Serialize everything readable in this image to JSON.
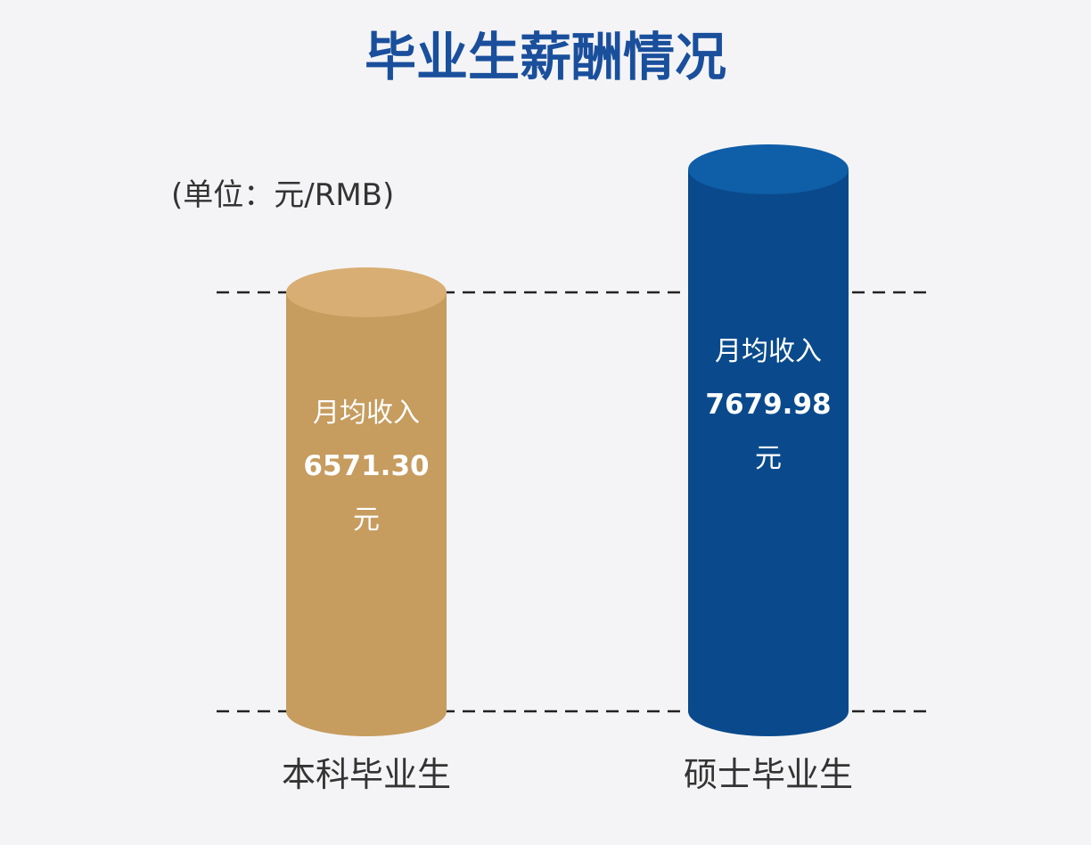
{
  "chart_data": {
    "type": "bar",
    "style": "cylinder",
    "title": "毕业生薪酬情况",
    "unit_label": "(单位：元/RMB)",
    "categories": [
      "本科毕业生",
      "硕士毕业生"
    ],
    "values": [
      6571.3,
      7679.98
    ],
    "value_labels": [
      "6571.30",
      "7679.98"
    ],
    "label_prefix": "月均收入",
    "label_suffix": "元",
    "colors": [
      "#c69c5f",
      "#0a4a8c"
    ],
    "top_colors": [
      "#d8ae74",
      "#0f5ea8"
    ],
    "title_color": "#1a4f9c",
    "grid": "dashed reference lines",
    "legend": "none"
  }
}
